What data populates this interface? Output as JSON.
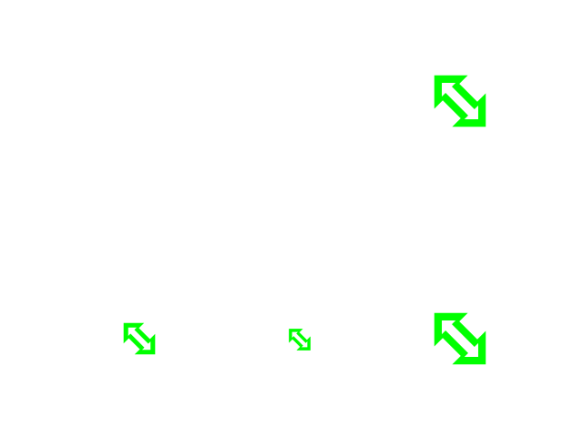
{
  "canvas": {
    "background": "#ffffff"
  },
  "icons": {
    "accent_color": "#00ff00",
    "outline_color": "#ffffff",
    "items": [
      {
        "name": "resize-diagonal-nw-se-icon"
      },
      {
        "name": "resize-diagonal-nw-se-icon"
      },
      {
        "name": "resize-diagonal-nw-se-icon"
      },
      {
        "name": "resize-diagonal-nw-se-icon"
      }
    ]
  }
}
